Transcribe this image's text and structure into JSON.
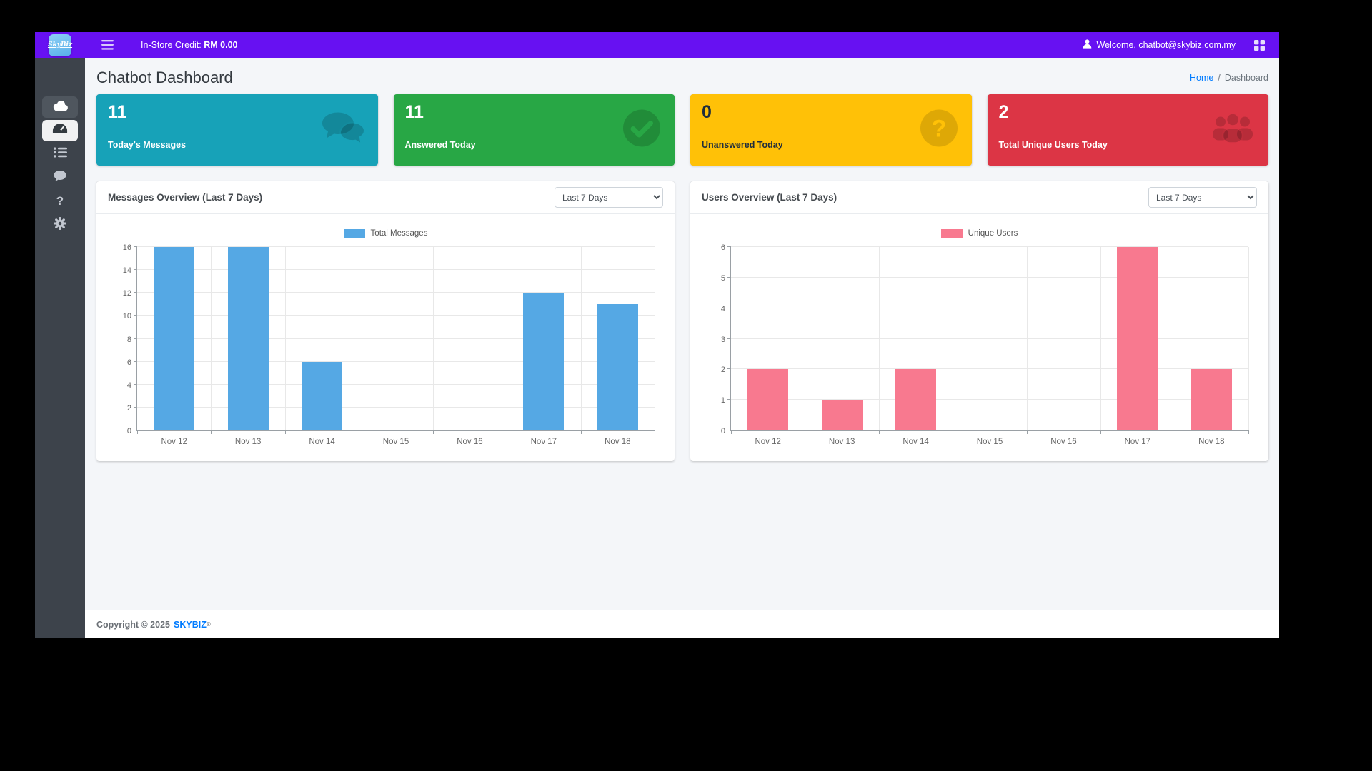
{
  "page": {
    "topbar": {
      "logo_text": "SkyBiz",
      "credit_label": "In-Store Credit:",
      "credit_value": "RM 0.00",
      "welcome": "Welcome, chatbot@skybiz.com.my"
    },
    "header": {
      "title": "Chatbot Dashboard",
      "breadcrumb": {
        "home": "Home",
        "sep": "/",
        "current": "Dashboard"
      }
    },
    "cards": [
      {
        "value": "11",
        "label": "Today's Messages",
        "color": "#17a2b8",
        "icon": "comments-icon"
      },
      {
        "value": "11",
        "label": "Answered Today",
        "color": "#28a745",
        "icon": "check-circle-icon"
      },
      {
        "value": "0",
        "label": "Unanswered Today",
        "color": "#ffc107",
        "icon": "question-circle-icon"
      },
      {
        "value": "2",
        "label": "Total Unique Users Today",
        "color": "#dc3545",
        "icon": "users-icon"
      }
    ],
    "footer": {
      "text": "Copyright © 2025",
      "brand": "SKYBIZ",
      "reg": "®"
    }
  },
  "sidebar": {
    "items": [
      {
        "id": "cloud",
        "icon": "cloud-icon",
        "state": "highlighted"
      },
      {
        "id": "dashboard",
        "icon": "tachometer-icon",
        "state": "active"
      },
      {
        "id": "list",
        "icon": "list-icon",
        "state": ""
      },
      {
        "id": "chat",
        "icon": "chat-bubble-icon",
        "state": ""
      },
      {
        "id": "help",
        "icon": "question-icon",
        "state": ""
      },
      {
        "id": "settings",
        "icon": "gear-icon",
        "state": ""
      }
    ]
  },
  "chart_data": [
    {
      "type": "bar",
      "title": "Messages Overview (Last 7 Days)",
      "range_selected": "Last 7 Days",
      "categories": [
        "Nov 12",
        "Nov 13",
        "Nov 14",
        "Nov 15",
        "Nov 16",
        "Nov 17",
        "Nov 18"
      ],
      "series": [
        {
          "name": "Total Messages",
          "color": "#55a8e4",
          "values": [
            16,
            16,
            6,
            0,
            0,
            12,
            11
          ]
        }
      ],
      "ylim": [
        0,
        16
      ],
      "ytick": 2,
      "grid": true,
      "legend_position": "top"
    },
    {
      "type": "bar",
      "title": "Users Overview (Last 7 Days)",
      "range_selected": "Last 7 Days",
      "categories": [
        "Nov 12",
        "Nov 13",
        "Nov 14",
        "Nov 15",
        "Nov 16",
        "Nov 17",
        "Nov 18"
      ],
      "series": [
        {
          "name": "Unique Users",
          "color": "#f8798f",
          "values": [
            2,
            1,
            2,
            0,
            0,
            6,
            2
          ]
        }
      ],
      "ylim": [
        0,
        6
      ],
      "ytick": 1,
      "grid": true,
      "legend_position": "top"
    }
  ]
}
